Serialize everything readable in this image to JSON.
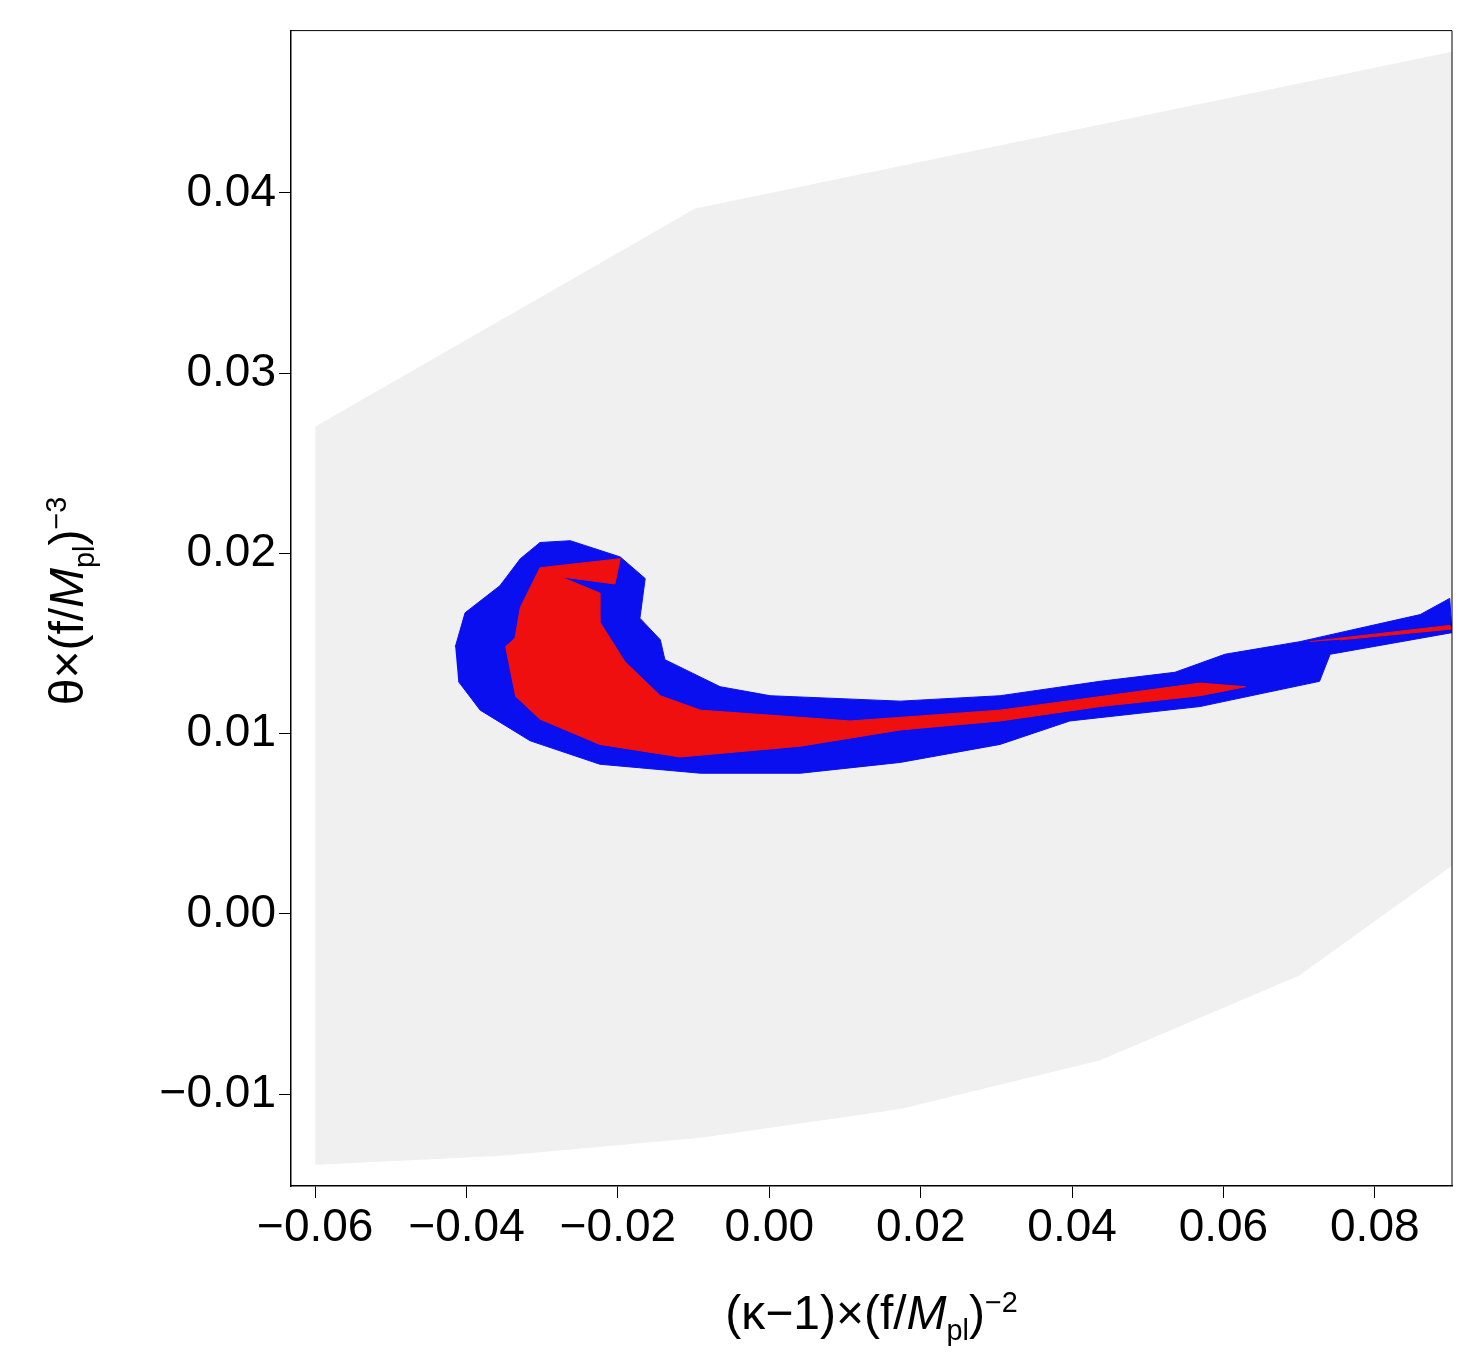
{
  "chart_data": {
    "type": "area",
    "xlabel": "(κ−1)×(f/M$_{pl}$)$^{−2}$",
    "ylabel": "θ×(f/M$_{pl}$)$^{−3}$",
    "xlim": [
      -0.0632,
      0.0902
    ],
    "ylim": [
      -0.0151,
      0.049
    ],
    "xticks": [
      {
        "value": -0.06,
        "label": "−0.06"
      },
      {
        "value": -0.04,
        "label": "−0.04"
      },
      {
        "value": -0.02,
        "label": "−0.02"
      },
      {
        "value": 0,
        "label": "0.00"
      },
      {
        "value": 0.02,
        "label": "0.02"
      },
      {
        "value": 0.04,
        "label": "0.04"
      },
      {
        "value": 0.06,
        "label": "0.06"
      },
      {
        "value": 0.08,
        "label": "0.08"
      }
    ],
    "yticks": [
      {
        "value": -0.01,
        "label": "−0.01"
      },
      {
        "value": 0,
        "label": "0.00"
      },
      {
        "value": 0.01,
        "label": "0.01"
      },
      {
        "value": 0.02,
        "label": "0.02"
      },
      {
        "value": 0.03,
        "label": "0.03"
      },
      {
        "value": 0.04,
        "label": "0.04"
      }
    ],
    "grid": false,
    "legend": false,
    "series": [
      {
        "color": "#f0f0f0",
        "x": [
          -0.06,
          -0.0098,
          0.0902,
          0.0902,
          0.07,
          0.0437,
          0.0173,
          -0.0091,
          -0.0356,
          -0.06
        ],
        "values": [
          0.027,
          0.0391,
          0.0478,
          0.0027,
          -0.0034,
          -0.0081,
          -0.0108,
          -0.0124,
          -0.0134,
          -0.0139
        ]
      },
      {
        "color": "#0a0ff0",
        "x": [
          -0.0415,
          -0.0402,
          -0.0356,
          -0.0329,
          -0.0303,
          -0.0263,
          -0.0197,
          -0.0164,
          -0.0171,
          -0.0144,
          -0.0138,
          -0.0065,
          0.0001,
          0.0173,
          0.0305,
          0.0437,
          0.0536,
          0.0602,
          0.0701,
          0.086,
          0.0899,
          0.0902,
          0.0741,
          0.0727,
          0.0569,
          0.0397,
          0.0305,
          0.0173,
          0.0041,
          -0.0091,
          -0.0224,
          -0.0316,
          -0.0382,
          -0.0411
        ],
        "values": [
          0.0148,
          0.0167,
          0.0182,
          0.0197,
          0.0206,
          0.0207,
          0.0198,
          0.0186,
          0.0164,
          0.0152,
          0.0141,
          0.0126,
          0.0121,
          0.0118,
          0.0121,
          0.0129,
          0.0134,
          0.0144,
          0.0151,
          0.0166,
          0.0175,
          0.0156,
          0.0144,
          0.0129,
          0.0115,
          0.0107,
          0.0094,
          0.0084,
          0.0078,
          0.0078,
          0.0083,
          0.0096,
          0.0113,
          0.0129
        ]
      },
      {
        "color": "#f00f0f",
        "x": [
          -0.0349,
          -0.0336,
          -0.0329,
          -0.0303,
          -0.0197,
          -0.0204,
          -0.0276,
          -0.0224,
          -0.0224,
          -0.0191,
          -0.0144,
          -0.0091,
          0.0107,
          0.0305,
          0.0569,
          0.0629,
          0.0569,
          0.0437,
          0.0305,
          0.0173,
          0.0041,
          -0.0118,
          -0.0224,
          -0.0303,
          -0.0336
        ],
        "values": [
          0.0148,
          0.0153,
          0.017,
          0.0192,
          0.0197,
          0.0183,
          0.0187,
          0.0178,
          0.0162,
          0.014,
          0.0121,
          0.0113,
          0.0107,
          0.0113,
          0.0128,
          0.0126,
          0.0121,
          0.0115,
          0.0107,
          0.0102,
          0.0093,
          0.0087,
          0.0094,
          0.0108,
          0.0121
        ]
      },
      {
        "color": "#f00f0f",
        "x": [
          0.0714,
          0.0899,
          0.0902,
          0.0754
        ],
        "values": [
          0.0151,
          0.016,
          0.0158,
          0.0152
        ]
      }
    ]
  }
}
